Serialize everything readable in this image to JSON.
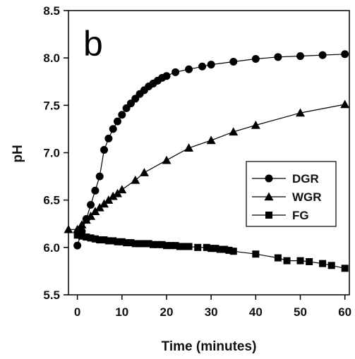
{
  "chart_data": {
    "type": "line",
    "panel_label": "b",
    "xlabel": "Time (minutes)",
    "ylabel": "pH",
    "xlim": [
      -2,
      61
    ],
    "ylim": [
      5.5,
      8.5
    ],
    "x_ticks": [
      0,
      10,
      20,
      30,
      40,
      50,
      60
    ],
    "y_ticks": [
      5.5,
      6.0,
      6.5,
      7.0,
      7.5,
      8.0,
      8.5
    ],
    "y_tick_labels": [
      "5.5",
      "6.0",
      "6.5",
      "7.0",
      "7.5",
      "8.0",
      "8.5"
    ],
    "grid": false,
    "legend_position": "right-middle",
    "series": [
      {
        "name": "DGR",
        "marker": "circle",
        "color": "#000000",
        "x": [
          0,
          1,
          2,
          3,
          4,
          5,
          6,
          7,
          8,
          9,
          10,
          11,
          12,
          13,
          14,
          15,
          16,
          17,
          18,
          19,
          20,
          22,
          25,
          28,
          30,
          35,
          40,
          45,
          50,
          55,
          60
        ],
        "y": [
          6.02,
          6.17,
          6.3,
          6.45,
          6.6,
          6.75,
          7.03,
          7.15,
          7.25,
          7.33,
          7.4,
          7.47,
          7.52,
          7.57,
          7.62,
          7.66,
          7.7,
          7.73,
          7.76,
          7.79,
          7.81,
          7.85,
          7.88,
          7.91,
          7.93,
          7.96,
          7.99,
          8.01,
          8.02,
          8.03,
          8.04
        ]
      },
      {
        "name": "WGR",
        "marker": "triangle",
        "color": "#000000",
        "x": [
          -2,
          0,
          1,
          2,
          3,
          4,
          5,
          6,
          7,
          8,
          9,
          10,
          13,
          15,
          20,
          25,
          30,
          35,
          40,
          50,
          60
        ],
        "y": [
          6.19,
          6.19,
          6.24,
          6.29,
          6.33,
          6.38,
          6.42,
          6.46,
          6.5,
          6.54,
          6.57,
          6.61,
          6.71,
          6.79,
          6.92,
          7.05,
          7.13,
          7.22,
          7.29,
          7.42,
          7.51
        ]
      },
      {
        "name": "FG",
        "marker": "square",
        "color": "#000000",
        "x": [
          0,
          1,
          2,
          3,
          4,
          5,
          6,
          7,
          8,
          9,
          10,
          11,
          12,
          13,
          14,
          15,
          16,
          17,
          18,
          19,
          20,
          21,
          22,
          23,
          24,
          25,
          27,
          29,
          30,
          31,
          32,
          33,
          34,
          35,
          40,
          45,
          47,
          50,
          52,
          55,
          57,
          60
        ],
        "y": [
          6.13,
          6.12,
          6.11,
          6.1,
          6.09,
          6.08,
          6.08,
          6.07,
          6.07,
          6.06,
          6.06,
          6.05,
          6.05,
          6.04,
          6.04,
          6.04,
          6.04,
          6.03,
          6.03,
          6.03,
          6.02,
          6.02,
          6.02,
          6.01,
          6.01,
          6.01,
          6.0,
          6.0,
          5.99,
          5.99,
          5.98,
          5.98,
          5.97,
          5.96,
          5.93,
          5.89,
          5.86,
          5.86,
          5.85,
          5.83,
          5.81,
          5.78
        ]
      }
    ]
  }
}
